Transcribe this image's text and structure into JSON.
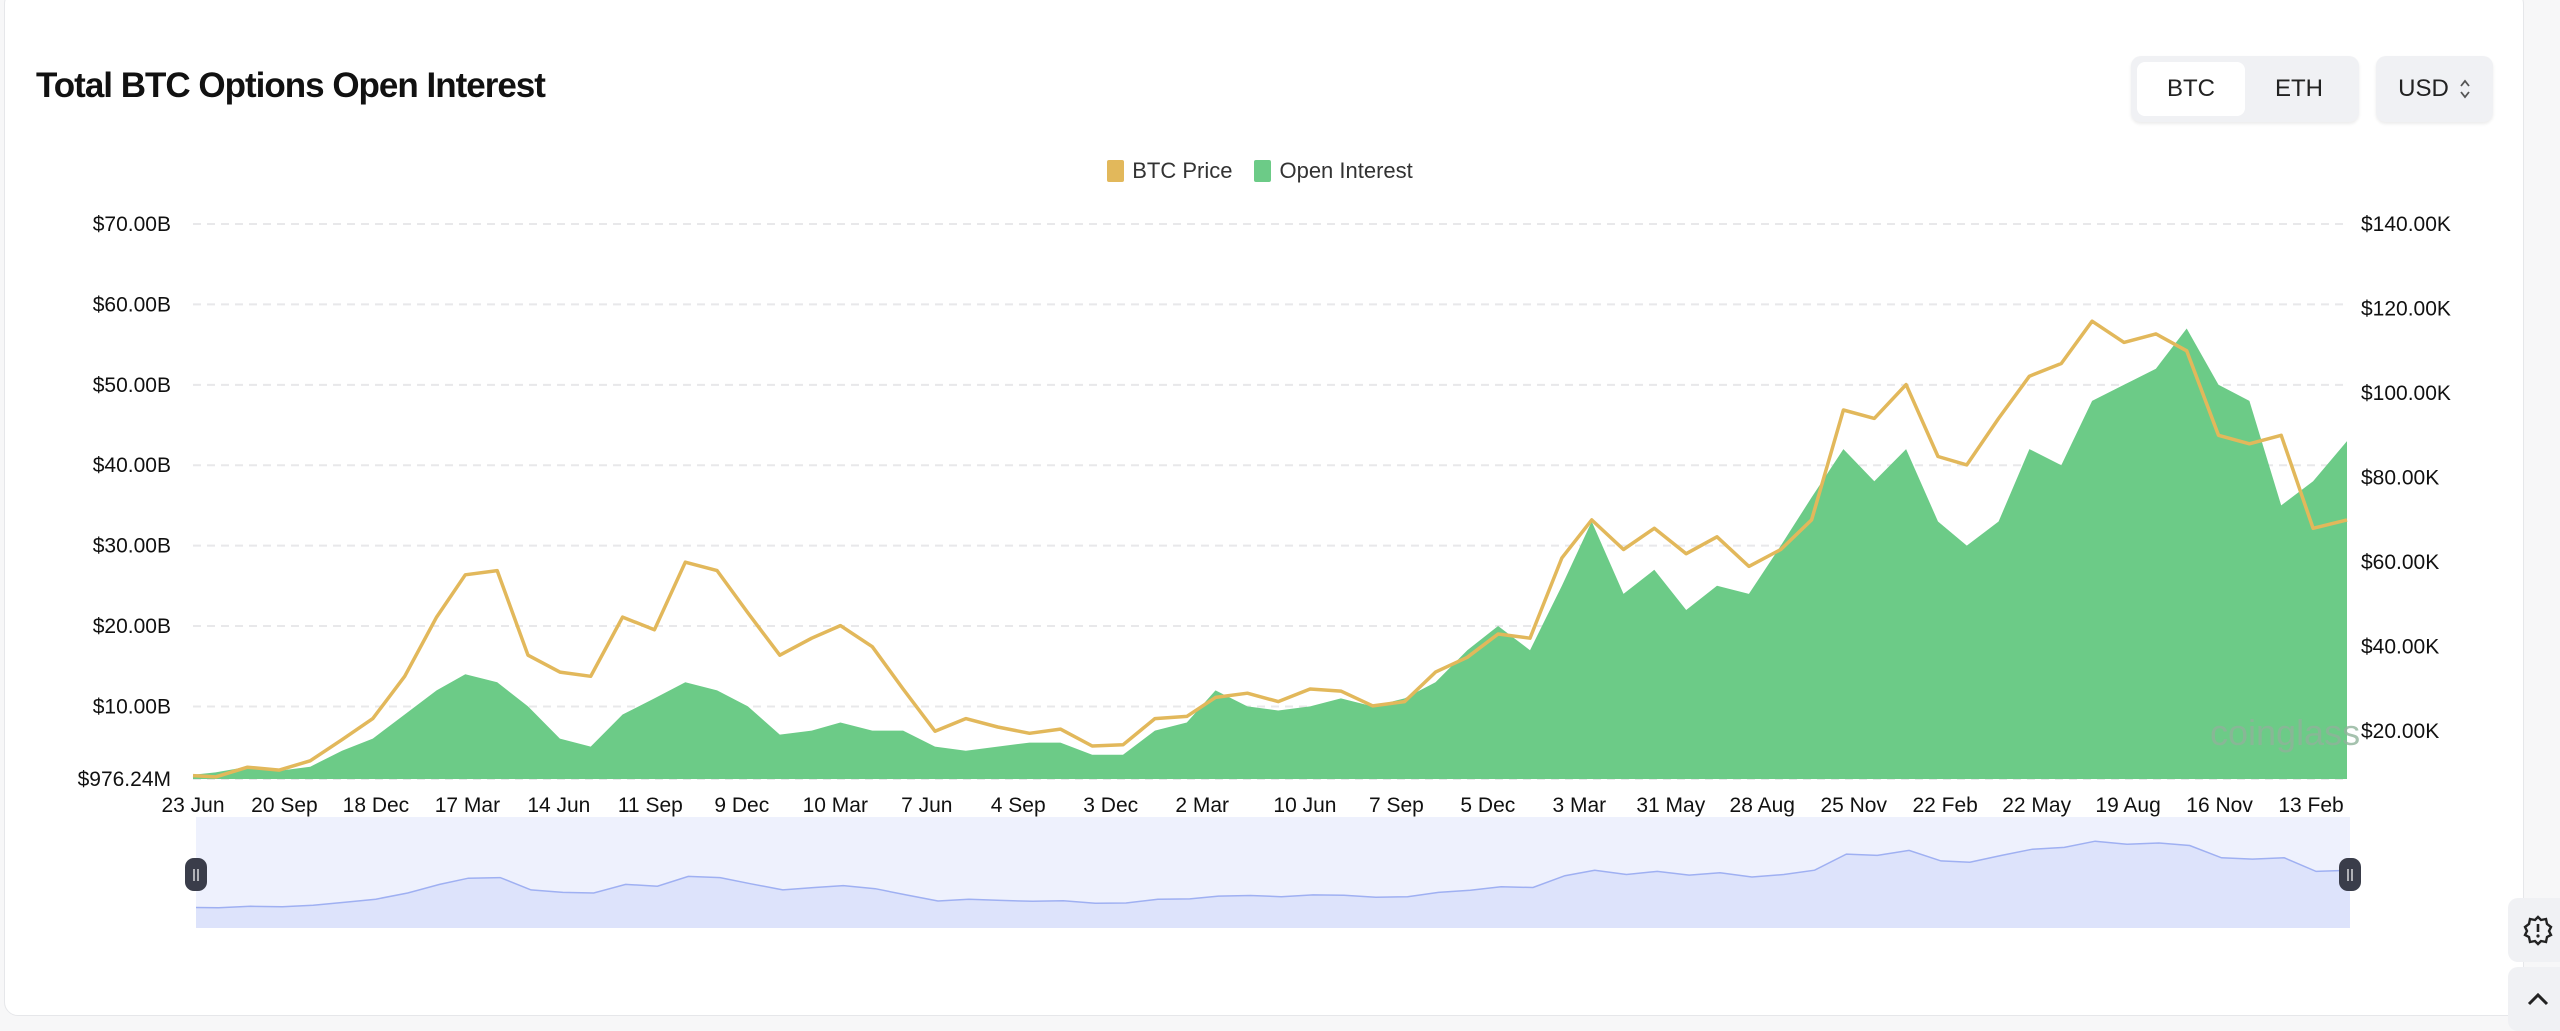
{
  "header": {
    "title": "Total BTC Options Open Interest"
  },
  "controls": {
    "asset_options": [
      "BTC",
      "ETH"
    ],
    "asset_selected": "BTC",
    "currency_selected": "USD"
  },
  "watermark": "coinglass",
  "side_buttons": [
    {
      "icon": "settings-icon"
    },
    {
      "icon": "chevron-up-icon"
    }
  ],
  "colors": {
    "price": "#e2b85b",
    "open_interest": "#6ccb87",
    "navigator_line": "#9fb0f2",
    "navigator_fill": "#dde3fb",
    "navigator_bg": "#eef1fd"
  },
  "chart_data": {
    "type": "area+line",
    "title": "Total BTC Options Open Interest",
    "legend": {
      "placement": "top-center",
      "entries": [
        "BTC Price",
        "Open Interest"
      ]
    },
    "grid": "horizontal dashed",
    "x_tick_labels": [
      "23 Jun",
      "20 Sep",
      "18 Dec",
      "17 Mar",
      "14 Jun",
      "11 Sep",
      "9 Dec",
      "10 Mar",
      "7 Jun",
      "4 Sep",
      "3 Dec",
      "2 Mar",
      "10 Jun",
      "7 Sep",
      "5 Dec",
      "3 Mar",
      "31 May",
      "28 Aug",
      "25 Nov",
      "22 Feb",
      "22 May",
      "19 Aug",
      "16 Nov",
      "13 Feb"
    ],
    "x_tick_dates": [
      "2020-06-23",
      "2020-09-20",
      "2020-12-18",
      "2021-03-17",
      "2021-06-14",
      "2021-09-11",
      "2021-12-09",
      "2022-03-10",
      "2022-06-07",
      "2022-09-04",
      "2022-12-03",
      "2023-03-02",
      "2023-06-10",
      "2023-09-07",
      "2023-12-05",
      "2024-03-03",
      "2024-05-31",
      "2024-08-28",
      "2024-11-25",
      "2025-02-22",
      "2025-05-22",
      "2025-08-19",
      "2025-11-16",
      "2026-02-13"
    ],
    "x_range": [
      "2020-06-23",
      "2026-03-20"
    ],
    "left_axis": {
      "series": "Open Interest",
      "unit": "USD billions",
      "ticks": [
        "$976.24M",
        "$10.00B",
        "$20.00B",
        "$30.00B",
        "$40.00B",
        "$50.00B",
        "$60.00B",
        "$70.00B"
      ],
      "tick_values": [
        0.97624,
        10,
        20,
        30,
        40,
        50,
        60,
        70
      ],
      "range": [
        0.97624,
        70
      ]
    },
    "right_axis": {
      "series": "BTC Price",
      "unit": "USD thousands",
      "ticks": [
        "$20.00K",
        "$40.00K",
        "$60.00K",
        "$80.00K",
        "$100.00K",
        "$120.00K",
        "$140.00K"
      ],
      "tick_values": [
        20,
        40,
        60,
        80,
        100,
        120,
        140
      ],
      "range": [
        8.7,
        140
      ]
    },
    "x": [
      "2020-06-23",
      "2020-07-15",
      "2020-08-15",
      "2020-09-15",
      "2020-10-15",
      "2020-11-15",
      "2020-12-15",
      "2021-01-15",
      "2021-02-15",
      "2021-03-15",
      "2021-04-15",
      "2021-05-15",
      "2021-06-15",
      "2021-07-15",
      "2021-08-15",
      "2021-09-15",
      "2021-10-15",
      "2021-11-15",
      "2021-12-15",
      "2022-01-15",
      "2022-02-15",
      "2022-03-15",
      "2022-04-15",
      "2022-05-15",
      "2022-06-15",
      "2022-07-15",
      "2022-08-15",
      "2022-09-15",
      "2022-10-15",
      "2022-11-15",
      "2022-12-15",
      "2023-01-15",
      "2023-02-15",
      "2023-03-15",
      "2023-04-15",
      "2023-05-15",
      "2023-06-15",
      "2023-07-15",
      "2023-08-15",
      "2023-09-15",
      "2023-10-15",
      "2023-11-15",
      "2023-12-15",
      "2024-01-15",
      "2024-02-15",
      "2024-03-15",
      "2024-04-15",
      "2024-05-15",
      "2024-06-15",
      "2024-07-15",
      "2024-08-15",
      "2024-09-15",
      "2024-10-15",
      "2024-11-15",
      "2024-12-15",
      "2025-01-15",
      "2025-02-15",
      "2025-03-15",
      "2025-04-15",
      "2025-05-15",
      "2025-06-15",
      "2025-07-15",
      "2025-08-15",
      "2025-09-15",
      "2025-10-15",
      "2025-11-15",
      "2025-12-15",
      "2026-01-15",
      "2026-02-15",
      "2026-03-20"
    ],
    "series": [
      {
        "name": "BTC Price",
        "axis": "right",
        "type": "line",
        "values": [
          9.5,
          9.2,
          11.5,
          10.8,
          13,
          18,
          23,
          33,
          47,
          57,
          58,
          38,
          34,
          33,
          47,
          44,
          60,
          58,
          48,
          38,
          42,
          45,
          40,
          30,
          20,
          23,
          21,
          19.5,
          20.5,
          16.5,
          16.8,
          23,
          23.5,
          28,
          29,
          27,
          30,
          29.5,
          26,
          27,
          34,
          37.5,
          43,
          42,
          61,
          70,
          63,
          68,
          62,
          66,
          59,
          63,
          70,
          96,
          94,
          102,
          85,
          83,
          94,
          104,
          107,
          117,
          112,
          114,
          110,
          90,
          88,
          90,
          68,
          70
        ]
      },
      {
        "name": "Open Interest",
        "axis": "left",
        "type": "area",
        "values": [
          1.5,
          1.8,
          2.5,
          2.0,
          2.5,
          4.5,
          6,
          9,
          12,
          14,
          13,
          10,
          6,
          5,
          9,
          11,
          13,
          12,
          10,
          6.5,
          7,
          8,
          7,
          7,
          5,
          4.5,
          5,
          5.5,
          5.5,
          4,
          4,
          7,
          8,
          12,
          10,
          9.5,
          10,
          11,
          10,
          11,
          13,
          17,
          20,
          17,
          25,
          33,
          24,
          27,
          22,
          25,
          24,
          30,
          36,
          42,
          38,
          42,
          33,
          30,
          33,
          42,
          40,
          48,
          50,
          52,
          57,
          50,
          48,
          35,
          38,
          43
        ]
      }
    ]
  }
}
